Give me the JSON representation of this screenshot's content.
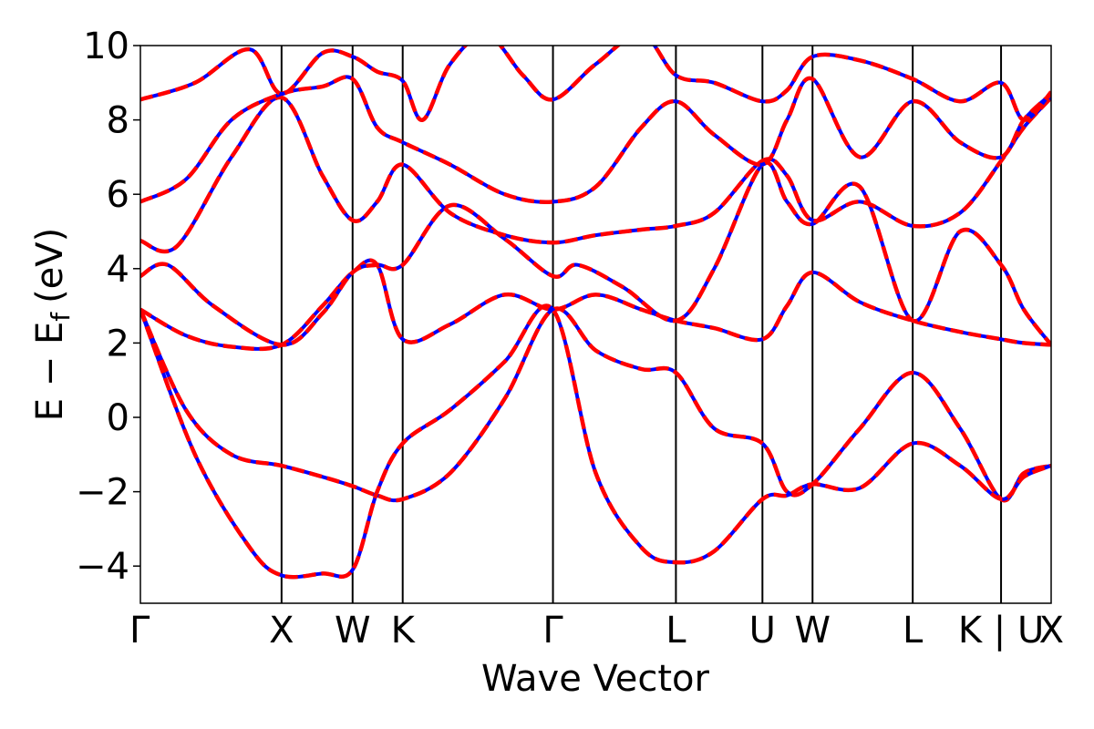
{
  "chart_data": {
    "type": "line",
    "title": "",
    "xlabel": "Wave Vector",
    "ylabel": "E − E",
    "ylabel_subscript": "f",
    "ylabel_unit": "(eV)",
    "ylim": [
      -5,
      10
    ],
    "y_ticks": [
      -4,
      -2,
      0,
      2,
      4,
      6,
      8,
      10
    ],
    "y_tick_labels": [
      "−4",
      "−2",
      "0",
      "2",
      "4",
      "6",
      "8",
      "10"
    ],
    "x_ticks": [
      0,
      0.155,
      0.233,
      0.288,
      0.453,
      0.588,
      0.683,
      0.738,
      0.848,
      0.945,
      1.0
    ],
    "x_tick_labels": [
      "Γ",
      "X",
      "W",
      "K",
      "Γ",
      "L",
      "U",
      "W",
      "L",
      "K | U",
      "X"
    ],
    "grid": false,
    "legend": "none",
    "colors": {
      "primary": "#ff0000",
      "secondary": "#0000ff",
      "vlines": "#000000"
    },
    "series": [
      {
        "x": [
          0,
          0.05,
          0.1,
          0.155,
          0.2,
          0.233,
          0.26,
          0.288,
          0.34,
          0.4,
          0.453,
          0.5,
          0.55,
          0.588,
          0.63,
          0.683,
          0.71,
          0.738,
          0.79,
          0.848,
          0.9,
          0.945,
          0.97,
          1.0
        ],
        "y": [
          2.9,
          2.2,
          1.9,
          1.95,
          3.0,
          3.9,
          4.1,
          2.1,
          2.5,
          3.3,
          2.9,
          3.3,
          2.9,
          2.6,
          2.4,
          2.1,
          3.0,
          3.9,
          3.1,
          2.6,
          2.3,
          2.1,
          2.0,
          1.95
        ]
      },
      {
        "x": [
          0,
          0.05,
          0.1,
          0.155,
          0.2,
          0.233,
          0.26,
          0.288,
          0.34,
          0.4,
          0.453,
          0.5,
          0.55,
          0.588,
          0.63,
          0.683,
          0.71,
          0.738,
          0.79,
          0.848,
          0.9,
          0.945,
          0.97,
          1.0
        ],
        "y": [
          2.9,
          0.2,
          -1.0,
          -1.3,
          -1.6,
          -1.85,
          -2.1,
          -2.2,
          -1.5,
          0.5,
          2.9,
          1.8,
          1.3,
          1.2,
          -0.3,
          -0.7,
          -2.0,
          -1.8,
          -0.3,
          1.2,
          -0.3,
          -2.2,
          -1.5,
          -1.3
        ]
      },
      {
        "x": [
          0,
          0.06,
          0.12,
          0.155,
          0.2,
          0.233,
          0.26,
          0.288,
          0.34,
          0.4,
          0.453,
          0.5,
          0.55,
          0.588,
          0.63,
          0.683,
          0.71,
          0.738,
          0.79,
          0.848,
          0.9,
          0.945,
          0.97,
          1.0
        ],
        "y": [
          2.9,
          -1.0,
          -3.5,
          -4.25,
          -4.2,
          -4.1,
          -2.0,
          -0.7,
          0.2,
          1.5,
          2.9,
          -1.5,
          -3.5,
          -3.9,
          -3.6,
          -2.2,
          -2.1,
          -1.8,
          -1.9,
          -0.7,
          -1.3,
          -2.2,
          -1.6,
          -1.3
        ]
      },
      {
        "x": [
          0,
          0.03,
          0.08,
          0.155,
          0.2,
          0.233,
          0.26,
          0.288,
          0.34,
          0.4,
          0.453,
          0.48,
          0.53,
          0.588,
          0.63,
          0.683,
          0.71,
          0.738,
          0.79,
          0.848,
          0.9,
          0.945,
          0.97,
          1.0
        ],
        "y": [
          3.8,
          4.1,
          3.0,
          1.95,
          2.8,
          3.9,
          4.1,
          4.1,
          5.7,
          4.8,
          3.8,
          4.1,
          3.5,
          2.6,
          4.0,
          6.8,
          5.8,
          5.2,
          6.2,
          2.6,
          5.0,
          4.1,
          2.9,
          1.95
        ]
      },
      {
        "x": [
          0,
          0.04,
          0.1,
          0.155,
          0.2,
          0.233,
          0.26,
          0.288,
          0.34,
          0.4,
          0.453,
          0.5,
          0.55,
          0.588,
          0.63,
          0.683,
          0.71,
          0.738,
          0.79,
          0.848,
          0.9,
          0.945,
          0.97,
          1.0
        ],
        "y": [
          4.75,
          4.6,
          7.0,
          8.6,
          6.5,
          5.3,
          5.8,
          6.8,
          5.5,
          4.9,
          4.7,
          4.9,
          5.05,
          5.15,
          5.5,
          6.9,
          6.5,
          5.3,
          5.8,
          5.15,
          5.5,
          6.9,
          7.8,
          8.6
        ]
      },
      {
        "x": [
          0,
          0.05,
          0.1,
          0.155,
          0.2,
          0.233,
          0.26,
          0.288,
          0.34,
          0.4,
          0.453,
          0.5,
          0.55,
          0.588,
          0.63,
          0.683,
          0.71,
          0.738,
          0.79,
          0.848,
          0.9,
          0.945,
          0.97,
          1.0
        ],
        "y": [
          5.8,
          6.4,
          8.0,
          8.7,
          8.9,
          9.1,
          7.8,
          7.4,
          6.8,
          6.0,
          5.8,
          6.2,
          7.8,
          8.5,
          7.6,
          6.8,
          8.0,
          9.1,
          7.0,
          8.5,
          7.4,
          7.0,
          8.0,
          8.7
        ]
      },
      {
        "x": [
          0,
          0.06,
          0.12,
          0.155,
          0.2,
          0.233,
          0.26,
          0.288,
          0.31,
          0.34,
          0.38,
          0.42,
          0.453,
          0.5,
          0.55,
          0.588,
          0.63,
          0.683,
          0.71,
          0.738,
          0.79,
          0.848,
          0.9,
          0.945,
          0.97,
          1.0
        ],
        "y": [
          8.55,
          9.0,
          9.9,
          8.7,
          9.8,
          9.7,
          9.3,
          9.05,
          8.0,
          9.5,
          10.3,
          9.2,
          8.55,
          9.5,
          10.3,
          9.2,
          9.0,
          8.5,
          8.8,
          9.7,
          9.6,
          9.1,
          8.5,
          9.0,
          8.0,
          8.75
        ]
      }
    ]
  }
}
